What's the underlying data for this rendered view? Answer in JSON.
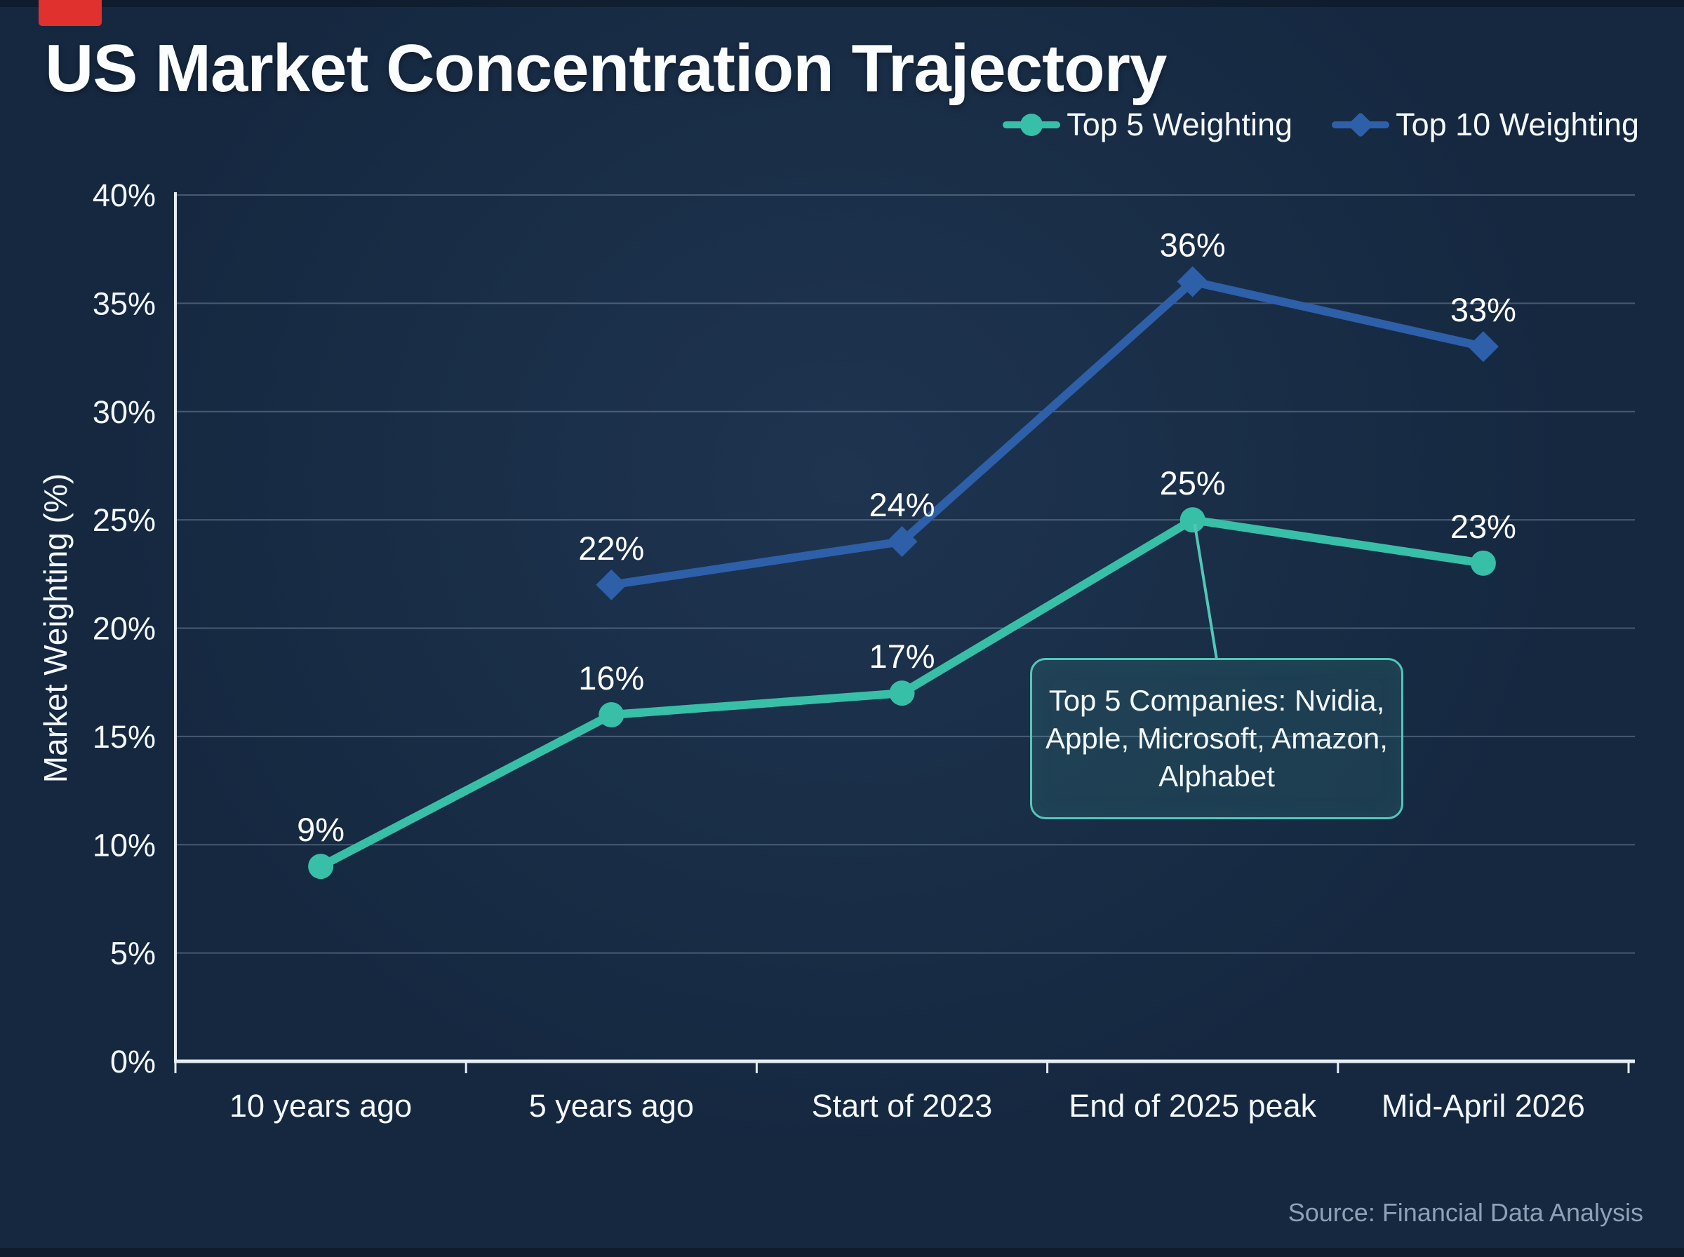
{
  "page": {
    "title": "US Market Concentration Trajectory",
    "source": "Source: Financial Data Analysis",
    "background_color": "#152840",
    "badge_color": "#e0312e"
  },
  "legend": {
    "position": "top-right",
    "items": [
      {
        "label": "Top 5 Weighting",
        "marker": "circle",
        "color": "#38bfa7"
      },
      {
        "label": "Top 10 Weighting",
        "marker": "diamond",
        "color": "#2e5fa9"
      }
    ]
  },
  "chart_data": {
    "type": "line",
    "title": "US Market Concentration Trajectory",
    "categories": [
      "10 years ago",
      "5 years ago",
      "Start of 2023",
      "End of 2025 peak",
      "Mid-April 2026"
    ],
    "series": [
      {
        "name": "Top 10 Weighting",
        "color": "#2e5fa9",
        "marker": "diamond",
        "values": [
          null,
          22,
          24,
          36,
          33
        ]
      },
      {
        "name": "Top 5 Weighting",
        "color": "#38bfa7",
        "marker": "circle",
        "values": [
          9,
          16,
          17,
          25,
          23
        ]
      }
    ],
    "xlabel": "",
    "ylabel": "Market Weighting (%)",
    "ylim": [
      0,
      40
    ],
    "ytick_step": 5,
    "ytick_labels": [
      "0%",
      "5%",
      "10%",
      "15%",
      "20%",
      "25%",
      "30%",
      "35%",
      "40%"
    ],
    "data_label_format": "{value}%",
    "grid": true,
    "grid_color": "rgba(186,204,228,0.30)",
    "axis_color": "#e6edf5",
    "text_color": "#f4f8fc",
    "legend_position": "top-right"
  },
  "annotation": {
    "text": "Top 5 Companies: Nvidia,\nApple, Microsoft, Amazon,\nAlphabet",
    "attached_to": "Top 5 Weighting at End of 2025 peak (25%)",
    "border_color": "#53c7b7"
  }
}
